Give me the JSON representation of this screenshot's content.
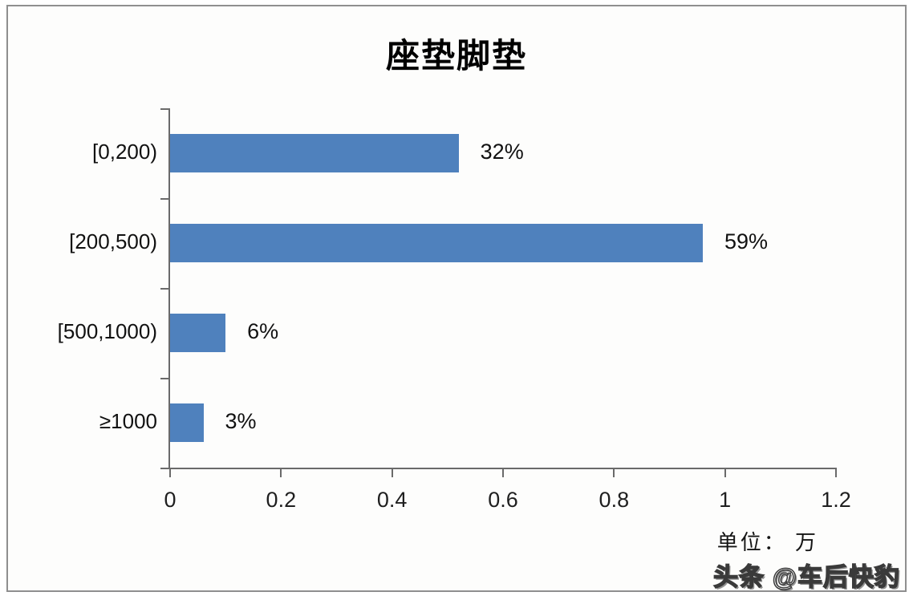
{
  "chart_data": {
    "type": "bar",
    "orientation": "horizontal",
    "title": "座垫脚垫",
    "categories": [
      "[0,200)",
      "[200,500)",
      "[500,1000)",
      "≥1000"
    ],
    "values": [
      0.52,
      0.96,
      0.1,
      0.06
    ],
    "data_labels": [
      "32%",
      "59%",
      "6%",
      "3%"
    ],
    "x_tick_values": [
      0,
      0.2,
      0.4,
      0.6,
      0.8,
      1,
      1.2
    ],
    "x_tick_labels": [
      "0",
      "0.2",
      "0.4",
      "0.6",
      "0.8",
      "1",
      "1.2"
    ],
    "xlim": [
      0,
      1.2
    ],
    "xlabel": "",
    "ylabel": "",
    "grid": false,
    "legend": null,
    "bar_color": "#4f81bd",
    "axis_color": "#6a6a6a",
    "background_color": "#fdfdfc",
    "frame_border_color": "#8f8f8f"
  },
  "unit_label": "单位： 万",
  "watermark": "头条 @车后快豹"
}
